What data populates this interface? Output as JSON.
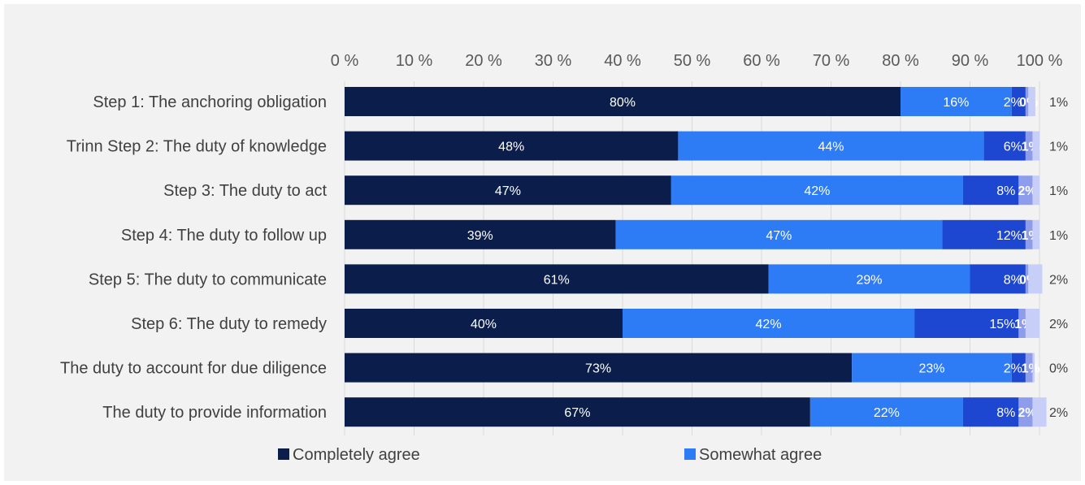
{
  "chart_data": {
    "type": "bar",
    "orientation": "horizontal",
    "stacked": true,
    "categories": [
      "Step 1: The anchoring obligation",
      "Trinn Step 2: The duty of knowledge",
      "Step 3: The duty to act",
      "Step 4: The duty to follow up",
      "Step 5: The duty to communicate",
      "Step 6: The duty to remedy",
      "The duty to account for due diligence",
      "The duty to provide information"
    ],
    "series": [
      {
        "name": "Completely agree",
        "color": "#0b1d4a",
        "values": [
          80,
          48,
          47,
          39,
          61,
          40,
          73,
          67
        ],
        "labels": [
          "80%",
          "48%",
          "47%",
          "39%",
          "61%",
          "40%",
          "73%",
          "67%"
        ]
      },
      {
        "name": "Somewhat agree",
        "color": "#2e7bf6",
        "values": [
          16,
          44,
          42,
          47,
          29,
          42,
          23,
          22
        ],
        "labels": [
          "16%",
          "44%",
          "42%",
          "47%",
          "29%",
          "42%",
          "23%",
          "22%"
        ]
      },
      {
        "name": "",
        "color": "#1d47d1",
        "values": [
          2,
          6,
          8,
          12,
          8,
          15,
          2,
          8
        ],
        "labels": [
          "2%",
          "6%",
          "8%",
          "12%",
          "8%",
          "15%",
          "2%",
          "8%"
        ]
      },
      {
        "name": "",
        "color": "#8e9cec",
        "values": [
          0.4,
          1,
          2,
          1,
          0.4,
          1,
          1,
          2
        ],
        "labels": [
          "0%",
          "1%",
          "2%",
          "1%",
          "0%",
          "1%",
          "1%",
          "2%"
        ]
      },
      {
        "name": "",
        "color": "#c7cef7",
        "values": [
          1,
          1,
          1,
          1,
          2,
          2,
          0.3,
          2
        ],
        "labels": [
          "1%",
          "1%",
          "1%",
          "1%",
          "2%",
          "2%",
          "0%",
          "2%"
        ]
      }
    ],
    "xlim": [
      0,
      100
    ],
    "xticks": [
      "0 %",
      "10 %",
      "20 %",
      "30 %",
      "40 %",
      "50 %",
      "60 %",
      "70 %",
      "80 %",
      "90 %",
      "100 %"
    ],
    "axis_position": "top",
    "grid": true,
    "legend_position": "bottom",
    "legend": [
      "Completely agree",
      "Somewhat agree"
    ]
  }
}
